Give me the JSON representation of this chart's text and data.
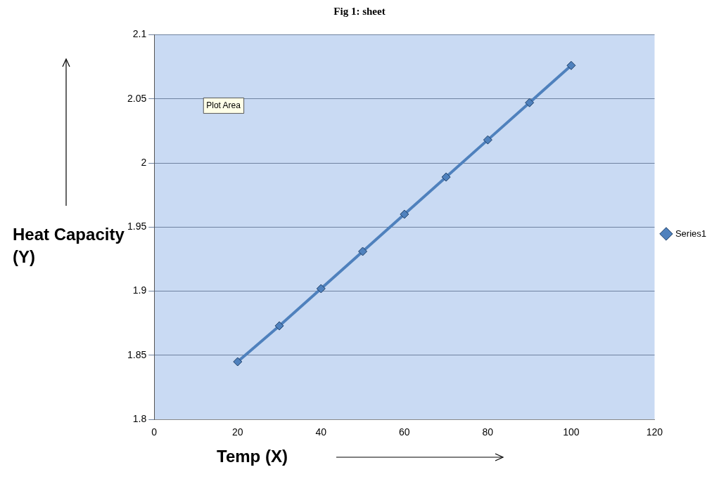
{
  "chart_data": {
    "type": "line",
    "title": "Fig 1: sheet",
    "xlabel": "Temp (X)",
    "ylabel": "Heat Capacity (Y)",
    "x": [
      20,
      30,
      40,
      50,
      60,
      70,
      80,
      90,
      100
    ],
    "series": [
      {
        "name": "Series1",
        "color": "#4f81bd",
        "values": [
          1.845,
          1.873,
          1.902,
          1.931,
          1.96,
          1.989,
          2.018,
          2.047,
          2.076
        ]
      }
    ],
    "xlim": [
      0,
      120
    ],
    "xticks": [
      0,
      20,
      40,
      60,
      80,
      100,
      120
    ],
    "ylim": [
      1.8,
      2.1
    ],
    "yticks": [
      1.8,
      1.85,
      1.9,
      1.95,
      2,
      2.05,
      2.1
    ],
    "grid": "y",
    "legend": "right",
    "marker": "diamond",
    "line_style": "solid",
    "annotations": [
      "Plot Area"
    ]
  }
}
